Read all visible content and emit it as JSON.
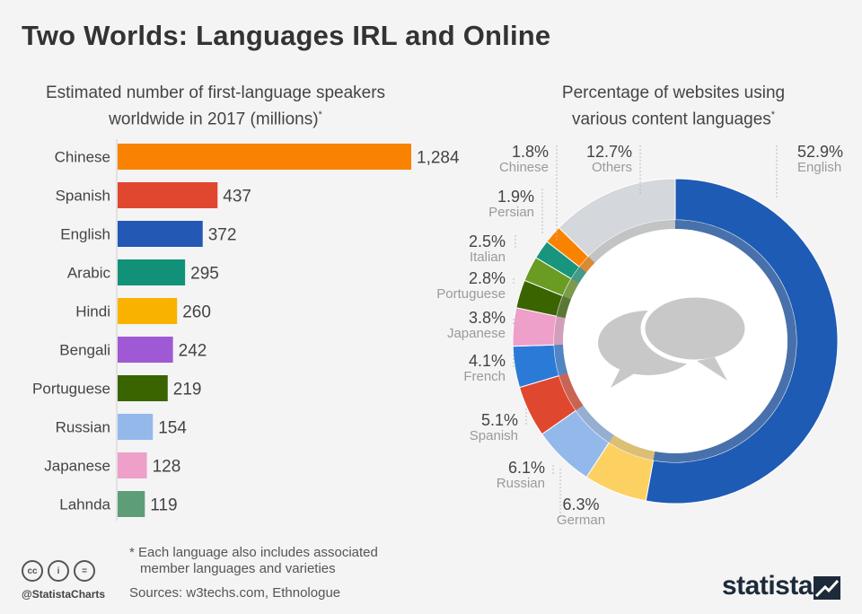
{
  "title": "Two Worlds: Languages IRL and Online",
  "left_subtitle_l1": "Estimated number of first-language speakers",
  "left_subtitle_l2": "worldwide in 2017 (millions)",
  "right_subtitle_l1": "Percentage of websites using",
  "right_subtitle_l2": "various content languages",
  "asterisk": "*",
  "footnote_l1": "* Each language also includes associated",
  "footnote_l2": "member languages and varieties",
  "sources": "Sources: w3techs.com, Ethnologue",
  "handle": "@StatistaCharts",
  "brand": "statista",
  "icons": {
    "cc": "cc",
    "by": "i",
    "nd": "="
  },
  "chart_data": [
    {
      "type": "bar",
      "orientation": "horizontal",
      "categories": [
        "Chinese",
        "Spanish",
        "English",
        "Arabic",
        "Hindi",
        "Bengali",
        "Portuguese",
        "Russian",
        "Japanese",
        "Lahnda"
      ],
      "values": [
        1284,
        437,
        372,
        295,
        260,
        242,
        219,
        154,
        128,
        119
      ],
      "value_labels": [
        "1,284",
        "437",
        "372",
        "295",
        "260",
        "242",
        "219",
        "154",
        "128",
        "119"
      ],
      "colors": [
        "#f98200",
        "#e0472f",
        "#2359b5",
        "#119178",
        "#f9b200",
        "#9f59d5",
        "#3a6400",
        "#93b9eb",
        "#ee9fca",
        "#5d9e78"
      ],
      "xlim": [
        0,
        1284
      ]
    },
    {
      "type": "pie",
      "variant": "donut",
      "categories": [
        "English",
        "German",
        "Russian",
        "Spanish",
        "French",
        "Japanese",
        "Portuguese",
        "Italian",
        "Persian",
        "Chinese",
        "Others"
      ],
      "values": [
        52.9,
        6.3,
        6.1,
        5.1,
        4.1,
        3.8,
        2.8,
        2.5,
        1.9,
        1.8,
        12.7
      ],
      "value_labels": [
        "52.9%",
        "6.3%",
        "6.1%",
        "5.1%",
        "4.1%",
        "3.8%",
        "2.8%",
        "2.5%",
        "1.9%",
        "1.8%",
        "12.7%"
      ],
      "colors": [
        "#1e5bb4",
        "#fdd062",
        "#93b9eb",
        "#e0472f",
        "#2c7ad8",
        "#ee9fca",
        "#3a6400",
        "#6a9b22",
        "#19957e",
        "#f98200",
        "#d4d7db"
      ],
      "center_icon": "speech-bubbles-icon"
    }
  ]
}
